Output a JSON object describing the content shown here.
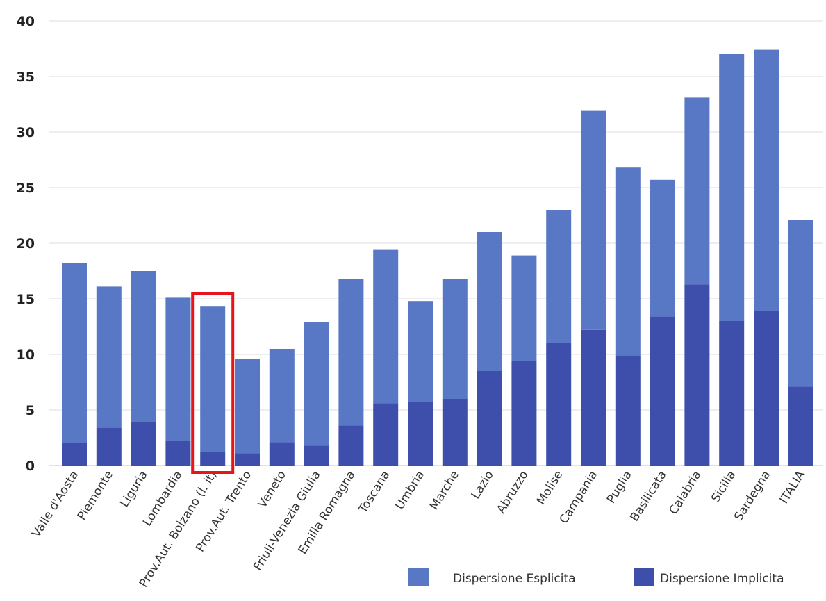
{
  "chart_data": {
    "type": "bar",
    "stacked": true,
    "title": "",
    "xlabel": "",
    "ylabel": "",
    "ylim": [
      0,
      40
    ],
    "yticks": [
      0,
      5,
      10,
      15,
      20,
      25,
      30,
      35,
      40
    ],
    "grid": true,
    "legend_position": "bottom-right",
    "categories": [
      "Valle d'Aosta",
      "Piemonte",
      "Liguria",
      "Lombardia",
      "Prov.Aut. Bolzano (l. it)",
      "Prov.Aut. Trento",
      "Veneto",
      "Friuli-Venezia Giulia",
      "Emilia Romagna",
      "Toscana",
      "Umbria",
      "Marche",
      "Lazio",
      "Abruzzo",
      "Molise",
      "Campania",
      "Puglia",
      "Basilicata",
      "Calabria",
      "Sicilia",
      "Sardegna",
      "ITALIA"
    ],
    "series": [
      {
        "name": "Dispersione Implicita",
        "color": "#3d4eab",
        "values": [
          2.0,
          3.4,
          3.9,
          2.2,
          1.2,
          1.1,
          2.1,
          1.8,
          3.6,
          5.6,
          5.7,
          6.0,
          8.5,
          9.4,
          11.0,
          12.2,
          9.9,
          13.4,
          16.3,
          13.0,
          13.9,
          7.1
        ]
      },
      {
        "name": "Dispersione Esplicita",
        "color": "#5877c4",
        "values": [
          16.2,
          12.7,
          13.6,
          12.9,
          13.1,
          8.5,
          8.4,
          11.1,
          13.2,
          13.8,
          9.1,
          10.8,
          12.5,
          9.5,
          12.0,
          19.7,
          16.9,
          12.3,
          16.8,
          24.0,
          23.5,
          15.0
        ]
      }
    ],
    "highlight": {
      "category": "Prov.Aut. Bolzano (l. it)",
      "color": "#e8141c"
    }
  }
}
